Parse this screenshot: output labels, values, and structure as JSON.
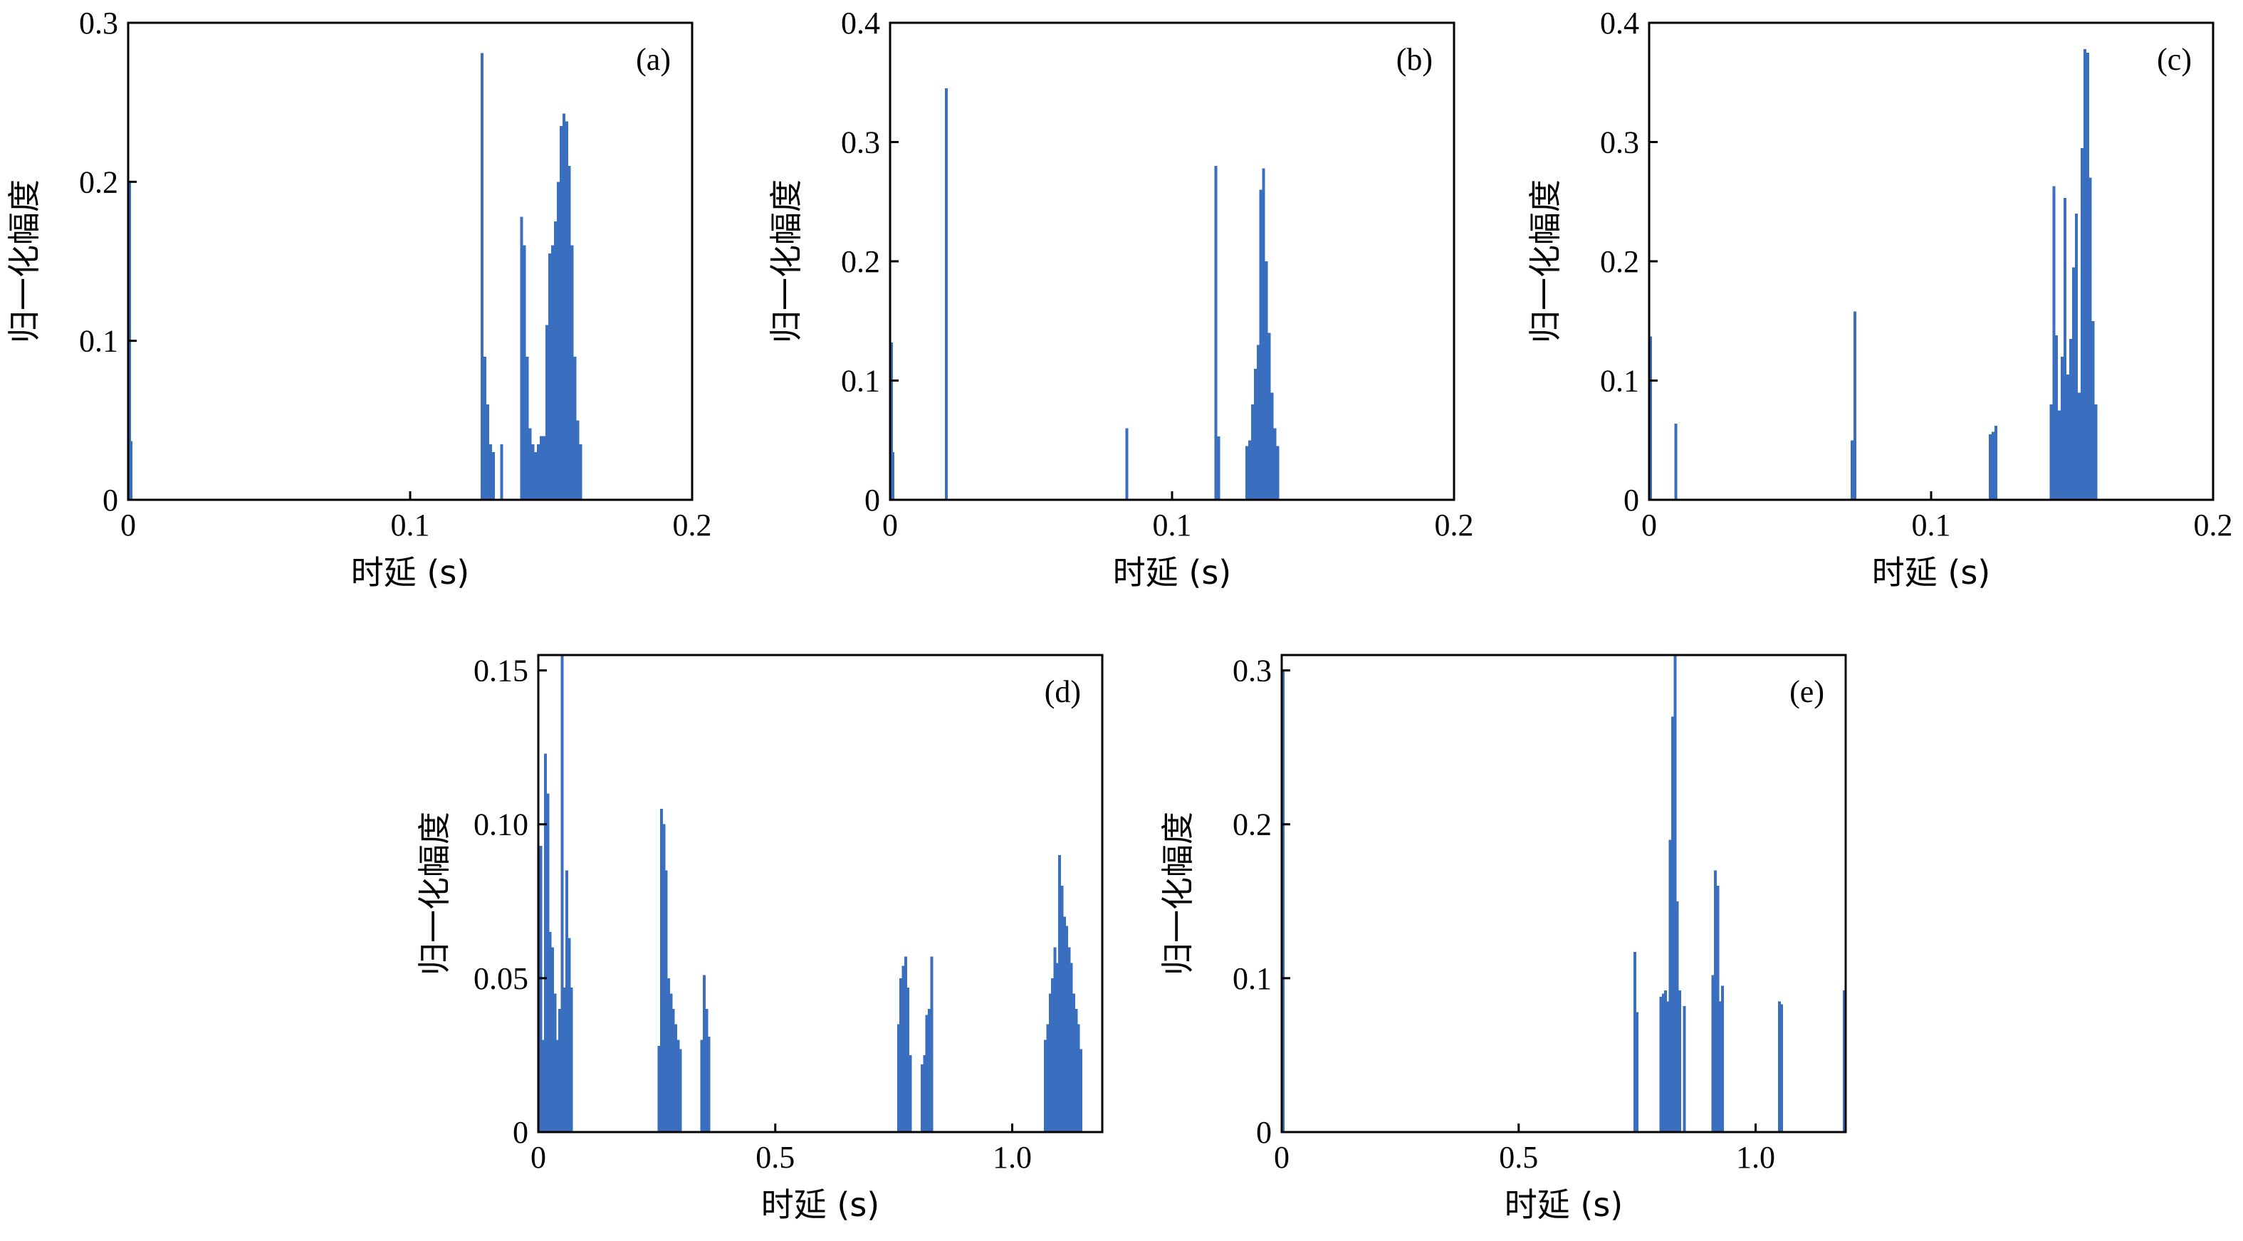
{
  "figure": {
    "bar_color": "#3a6fbf"
  },
  "chart_data": [
    {
      "type": "bar",
      "panel_label": "(a)",
      "xlabel": "时延 (s)",
      "ylabel": "归一化幅度",
      "xlim": [
        0,
        0.2
      ],
      "ylim": [
        0,
        0.3
      ],
      "xticks": [
        0,
        0.1,
        0.2
      ],
      "xtick_labels": [
        "0",
        "0.1",
        "0.2"
      ],
      "yticks": [
        0,
        0.1,
        0.2,
        0.3
      ],
      "ytick_labels": [
        "0",
        "0.1",
        "0.2",
        "0.3"
      ],
      "grid": false,
      "x": [
        0.0,
        0.001,
        0.1255,
        0.1265,
        0.1275,
        0.1285,
        0.1295,
        0.1325,
        0.1395,
        0.1405,
        0.1415,
        0.1425,
        0.1435,
        0.1445,
        0.1455,
        0.1465,
        0.1475,
        0.1485,
        0.1495,
        0.1505,
        0.1515,
        0.1525,
        0.1535,
        0.1545,
        0.1555,
        0.1565,
        0.1575,
        0.1585,
        0.1595,
        0.1605
      ],
      "values": [
        0.2,
        0.037,
        0.281,
        0.09,
        0.06,
        0.035,
        0.03,
        0.035,
        0.178,
        0.16,
        0.09,
        0.045,
        0.035,
        0.03,
        0.035,
        0.04,
        0.04,
        0.11,
        0.155,
        0.16,
        0.175,
        0.2,
        0.235,
        0.243,
        0.238,
        0.21,
        0.16,
        0.09,
        0.05,
        0.035
      ]
    },
    {
      "type": "bar",
      "panel_label": "(b)",
      "xlabel": "时延 (s)",
      "ylabel": "归一化幅度",
      "xlim": [
        0,
        0.2
      ],
      "ylim": [
        0,
        0.4
      ],
      "xticks": [
        0,
        0.1,
        0.2
      ],
      "xtick_labels": [
        "0",
        "0.1",
        "0.2"
      ],
      "yticks": [
        0,
        0.1,
        0.2,
        0.3,
        0.4
      ],
      "ytick_labels": [
        "0",
        "0.1",
        "0.2",
        "0.3",
        "0.4"
      ],
      "grid": false,
      "x": [
        0.0,
        0.001,
        0.02,
        0.084,
        0.1155,
        0.1165,
        0.1265,
        0.1275,
        0.1285,
        0.1295,
        0.1305,
        0.1315,
        0.1325,
        0.1335,
        0.1345,
        0.1355,
        0.1365,
        0.1375
      ],
      "values": [
        0.132,
        0.04,
        0.345,
        0.06,
        0.28,
        0.053,
        0.045,
        0.05,
        0.08,
        0.11,
        0.13,
        0.26,
        0.278,
        0.2,
        0.14,
        0.09,
        0.06,
        0.045
      ]
    },
    {
      "type": "bar",
      "panel_label": "(c)",
      "xlabel": "时延 (s)",
      "ylabel": "归一化幅度",
      "xlim": [
        0,
        0.2
      ],
      "ylim": [
        0,
        0.4
      ],
      "xticks": [
        0,
        0.1,
        0.2
      ],
      "xtick_labels": [
        "0",
        "0.1",
        "0.2"
      ],
      "yticks": [
        0,
        0.1,
        0.2,
        0.3,
        0.4
      ],
      "ytick_labels": [
        "0",
        "0.1",
        "0.2",
        "0.3",
        "0.4"
      ],
      "grid": false,
      "x": [
        0.0,
        0.0095,
        0.072,
        0.073,
        0.121,
        0.122,
        0.123,
        0.1425,
        0.1435,
        0.1445,
        0.1455,
        0.1465,
        0.1475,
        0.1485,
        0.1495,
        0.1505,
        0.1515,
        0.1525,
        0.1535,
        0.1545,
        0.1555,
        0.1565,
        0.1575,
        0.1585
      ],
      "values": [
        0.137,
        0.064,
        0.05,
        0.158,
        0.055,
        0.057,
        0.062,
        0.08,
        0.263,
        0.138,
        0.075,
        0.12,
        0.253,
        0.105,
        0.135,
        0.195,
        0.24,
        0.09,
        0.295,
        0.378,
        0.375,
        0.27,
        0.15,
        0.08
      ]
    },
    {
      "type": "bar",
      "panel_label": "(d)",
      "xlabel": "时延 (s)",
      "ylabel": "归一化幅度",
      "xlim": [
        0,
        1.19
      ],
      "ylim": [
        0,
        0.155
      ],
      "xticks": [
        0,
        0.5,
        1.0
      ],
      "xtick_labels": [
        "0",
        "0.5",
        "1.0"
      ],
      "yticks": [
        0,
        0.05,
        0.1,
        0.15
      ],
      "ytick_labels": [
        "0",
        "0.05",
        "0.10",
        "0.15"
      ],
      "grid": false,
      "x": [
        0.0,
        0.005,
        0.01,
        0.015,
        0.02,
        0.025,
        0.03,
        0.035,
        0.04,
        0.045,
        0.05,
        0.055,
        0.06,
        0.065,
        0.07,
        0.255,
        0.26,
        0.265,
        0.27,
        0.275,
        0.28,
        0.285,
        0.29,
        0.295,
        0.3,
        0.345,
        0.35,
        0.355,
        0.36,
        0.76,
        0.765,
        0.77,
        0.775,
        0.78,
        0.785,
        0.81,
        0.815,
        0.82,
        0.825,
        0.83,
        1.07,
        1.075,
        1.08,
        1.085,
        1.09,
        1.095,
        1.1,
        1.105,
        1.11,
        1.115,
        1.12,
        1.125,
        1.13,
        1.135,
        1.14,
        1.145
      ],
      "values": [
        0.035,
        0.093,
        0.03,
        0.123,
        0.11,
        0.065,
        0.06,
        0.045,
        0.03,
        0.04,
        0.155,
        0.047,
        0.085,
        0.063,
        0.047,
        0.028,
        0.105,
        0.1,
        0.085,
        0.05,
        0.045,
        0.04,
        0.035,
        0.03,
        0.027,
        0.03,
        0.051,
        0.04,
        0.031,
        0.035,
        0.05,
        0.054,
        0.057,
        0.047,
        0.025,
        0.022,
        0.025,
        0.038,
        0.04,
        0.057,
        0.03,
        0.035,
        0.045,
        0.05,
        0.06,
        0.055,
        0.09,
        0.08,
        0.07,
        0.067,
        0.06,
        0.055,
        0.045,
        0.04,
        0.035,
        0.027
      ]
    },
    {
      "type": "bar",
      "panel_label": "(e)",
      "xlabel": "时延 (s)",
      "ylabel": "归一化幅度",
      "xlim": [
        0,
        1.19
      ],
      "ylim": [
        0,
        0.31
      ],
      "xticks": [
        0,
        0.5,
        1.0
      ],
      "xtick_labels": [
        "0",
        "0.5",
        "1.0"
      ],
      "yticks": [
        0,
        0.1,
        0.2,
        0.3
      ],
      "ytick_labels": [
        "0",
        "0.1",
        "0.2",
        "0.3"
      ],
      "grid": false,
      "x": [
        0.0,
        0.745,
        0.75,
        0.8,
        0.805,
        0.81,
        0.815,
        0.82,
        0.825,
        0.83,
        0.835,
        0.84,
        0.85,
        0.91,
        0.915,
        0.92,
        0.925,
        0.93,
        1.05,
        1.055,
        1.19
      ],
      "values": [
        0.3,
        0.117,
        0.078,
        0.088,
        0.09,
        0.092,
        0.085,
        0.19,
        0.27,
        0.31,
        0.15,
        0.092,
        0.082,
        0.102,
        0.17,
        0.16,
        0.085,
        0.095,
        0.085,
        0.083,
        0.092
      ]
    }
  ]
}
